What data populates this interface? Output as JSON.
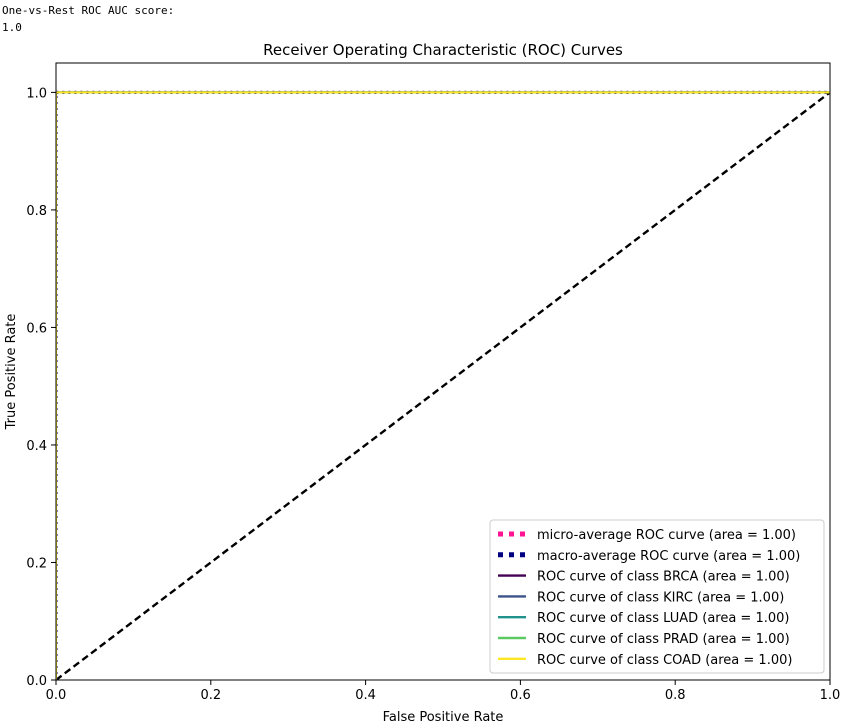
{
  "console": {
    "line1": "One-vs-Rest ROC AUC score:",
    "line2": "1.0"
  },
  "chart_data": {
    "type": "line",
    "title": "Receiver Operating Characteristic (ROC) Curves",
    "xlabel": "False Positive Rate",
    "ylabel": "True Positive Rate",
    "xlim": [
      0.0,
      1.0
    ],
    "ylim": [
      0.0,
      1.05
    ],
    "x_ticks": [
      "0.0",
      "0.2",
      "0.4",
      "0.6",
      "0.8",
      "1.0"
    ],
    "y_ticks": [
      "0.0",
      "0.2",
      "0.4",
      "0.6",
      "0.8",
      "1.0"
    ],
    "legend_position": "lower-right",
    "grid": false,
    "series": [
      {
        "name": "micro-average ROC curve (area = 1.00)",
        "color": "#ff1493",
        "style": "dotted",
        "x": [
          0.0,
          0.0,
          1.0
        ],
        "y": [
          0.0,
          1.0,
          1.0
        ]
      },
      {
        "name": "macro-average ROC curve (area = 1.00)",
        "color": "#000080",
        "style": "dotted",
        "x": [
          0.0,
          0.0,
          1.0
        ],
        "y": [
          0.0,
          1.0,
          1.0
        ]
      },
      {
        "name": "ROC curve of class BRCA (area = 1.00)",
        "color": "#440154",
        "style": "solid",
        "x": [
          0.0,
          0.0,
          1.0
        ],
        "y": [
          0.0,
          1.0,
          1.0
        ]
      },
      {
        "name": "ROC curve of class KIRC (area = 1.00)",
        "color": "#3b528b",
        "style": "solid",
        "x": [
          0.0,
          0.0,
          1.0
        ],
        "y": [
          0.0,
          1.0,
          1.0
        ]
      },
      {
        "name": "ROC curve of class LUAD (area = 1.00)",
        "color": "#21918c",
        "style": "solid",
        "x": [
          0.0,
          0.0,
          1.0
        ],
        "y": [
          0.0,
          1.0,
          1.0
        ]
      },
      {
        "name": "ROC curve of class PRAD (area = 1.00)",
        "color": "#5ec962",
        "style": "solid",
        "x": [
          0.0,
          0.0,
          1.0
        ],
        "y": [
          0.0,
          1.0,
          1.0
        ]
      },
      {
        "name": "ROC curve of class COAD (area = 1.00)",
        "color": "#fde725",
        "style": "solid",
        "x": [
          0.0,
          0.0,
          1.0
        ],
        "y": [
          0.0,
          1.0,
          1.0
        ]
      }
    ],
    "reference_line": {
      "color": "#000000",
      "style": "dashed",
      "x": [
        0.0,
        1.0
      ],
      "y": [
        0.0,
        1.0
      ]
    }
  }
}
